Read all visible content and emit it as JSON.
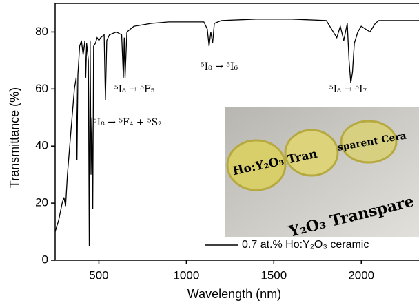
{
  "chart_data": {
    "type": "line",
    "xlabel": "Wavelength (nm)",
    "ylabel": "Transmittance (%)",
    "xlim": [
      250,
      2330
    ],
    "ylim": [
      0,
      90
    ],
    "xticks": [
      500,
      1000,
      1500,
      2000
    ],
    "yticks": [
      0,
      20,
      40,
      60,
      80
    ],
    "legend": "bottom right",
    "annotations": [
      "⁵I₈ → ⁵F₅",
      "⁵I₈ → ⁵F₄ + ⁵S₂",
      "⁵I₈ → ⁵I₆",
      "⁵I₈ → ⁵I₇"
    ],
    "photo_labels": [
      "Ho:Y₂O₃ Tran",
      "sparent Cera",
      "Y₂O₃ Transpare"
    ],
    "x": [
      250,
      270,
      290,
      300,
      310,
      320,
      340,
      360,
      370,
      375,
      380,
      390,
      400,
      410,
      420,
      425,
      430,
      440,
      445,
      450,
      455,
      460,
      465,
      470,
      480,
      490,
      500,
      510,
      530,
      537,
      545,
      560,
      600,
      630,
      640,
      645,
      650,
      660,
      700,
      800,
      900,
      1000,
      1100,
      1120,
      1130,
      1140,
      1150,
      1160,
      1200,
      1400,
      1600,
      1800,
      1840,
      1860,
      1880,
      1900,
      1920,
      1930,
      1940,
      1950,
      1960,
      1980,
      2000,
      2050,
      2080,
      2100,
      2200,
      2330
    ],
    "series": [
      {
        "name": "0.7 at.% Ho:Y₂O₃ ceramic",
        "color": "#000000",
        "values": [
          10,
          14,
          20,
          22,
          19,
          30,
          45,
          60,
          64,
          35,
          65,
          75,
          77,
          72,
          77,
          64,
          76,
          70,
          5,
          77,
          30,
          50,
          18,
          75,
          76,
          78,
          77,
          78,
          79,
          56,
          77,
          79,
          80,
          79,
          64,
          78,
          64,
          80,
          82,
          83,
          83.5,
          83.5,
          83.5,
          81,
          75,
          80,
          76,
          83,
          84,
          84.5,
          84.5,
          84,
          80,
          78,
          82,
          77,
          83,
          70,
          62,
          66,
          76,
          80,
          82,
          80,
          83,
          84,
          84,
          84
        ]
      }
    ]
  }
}
